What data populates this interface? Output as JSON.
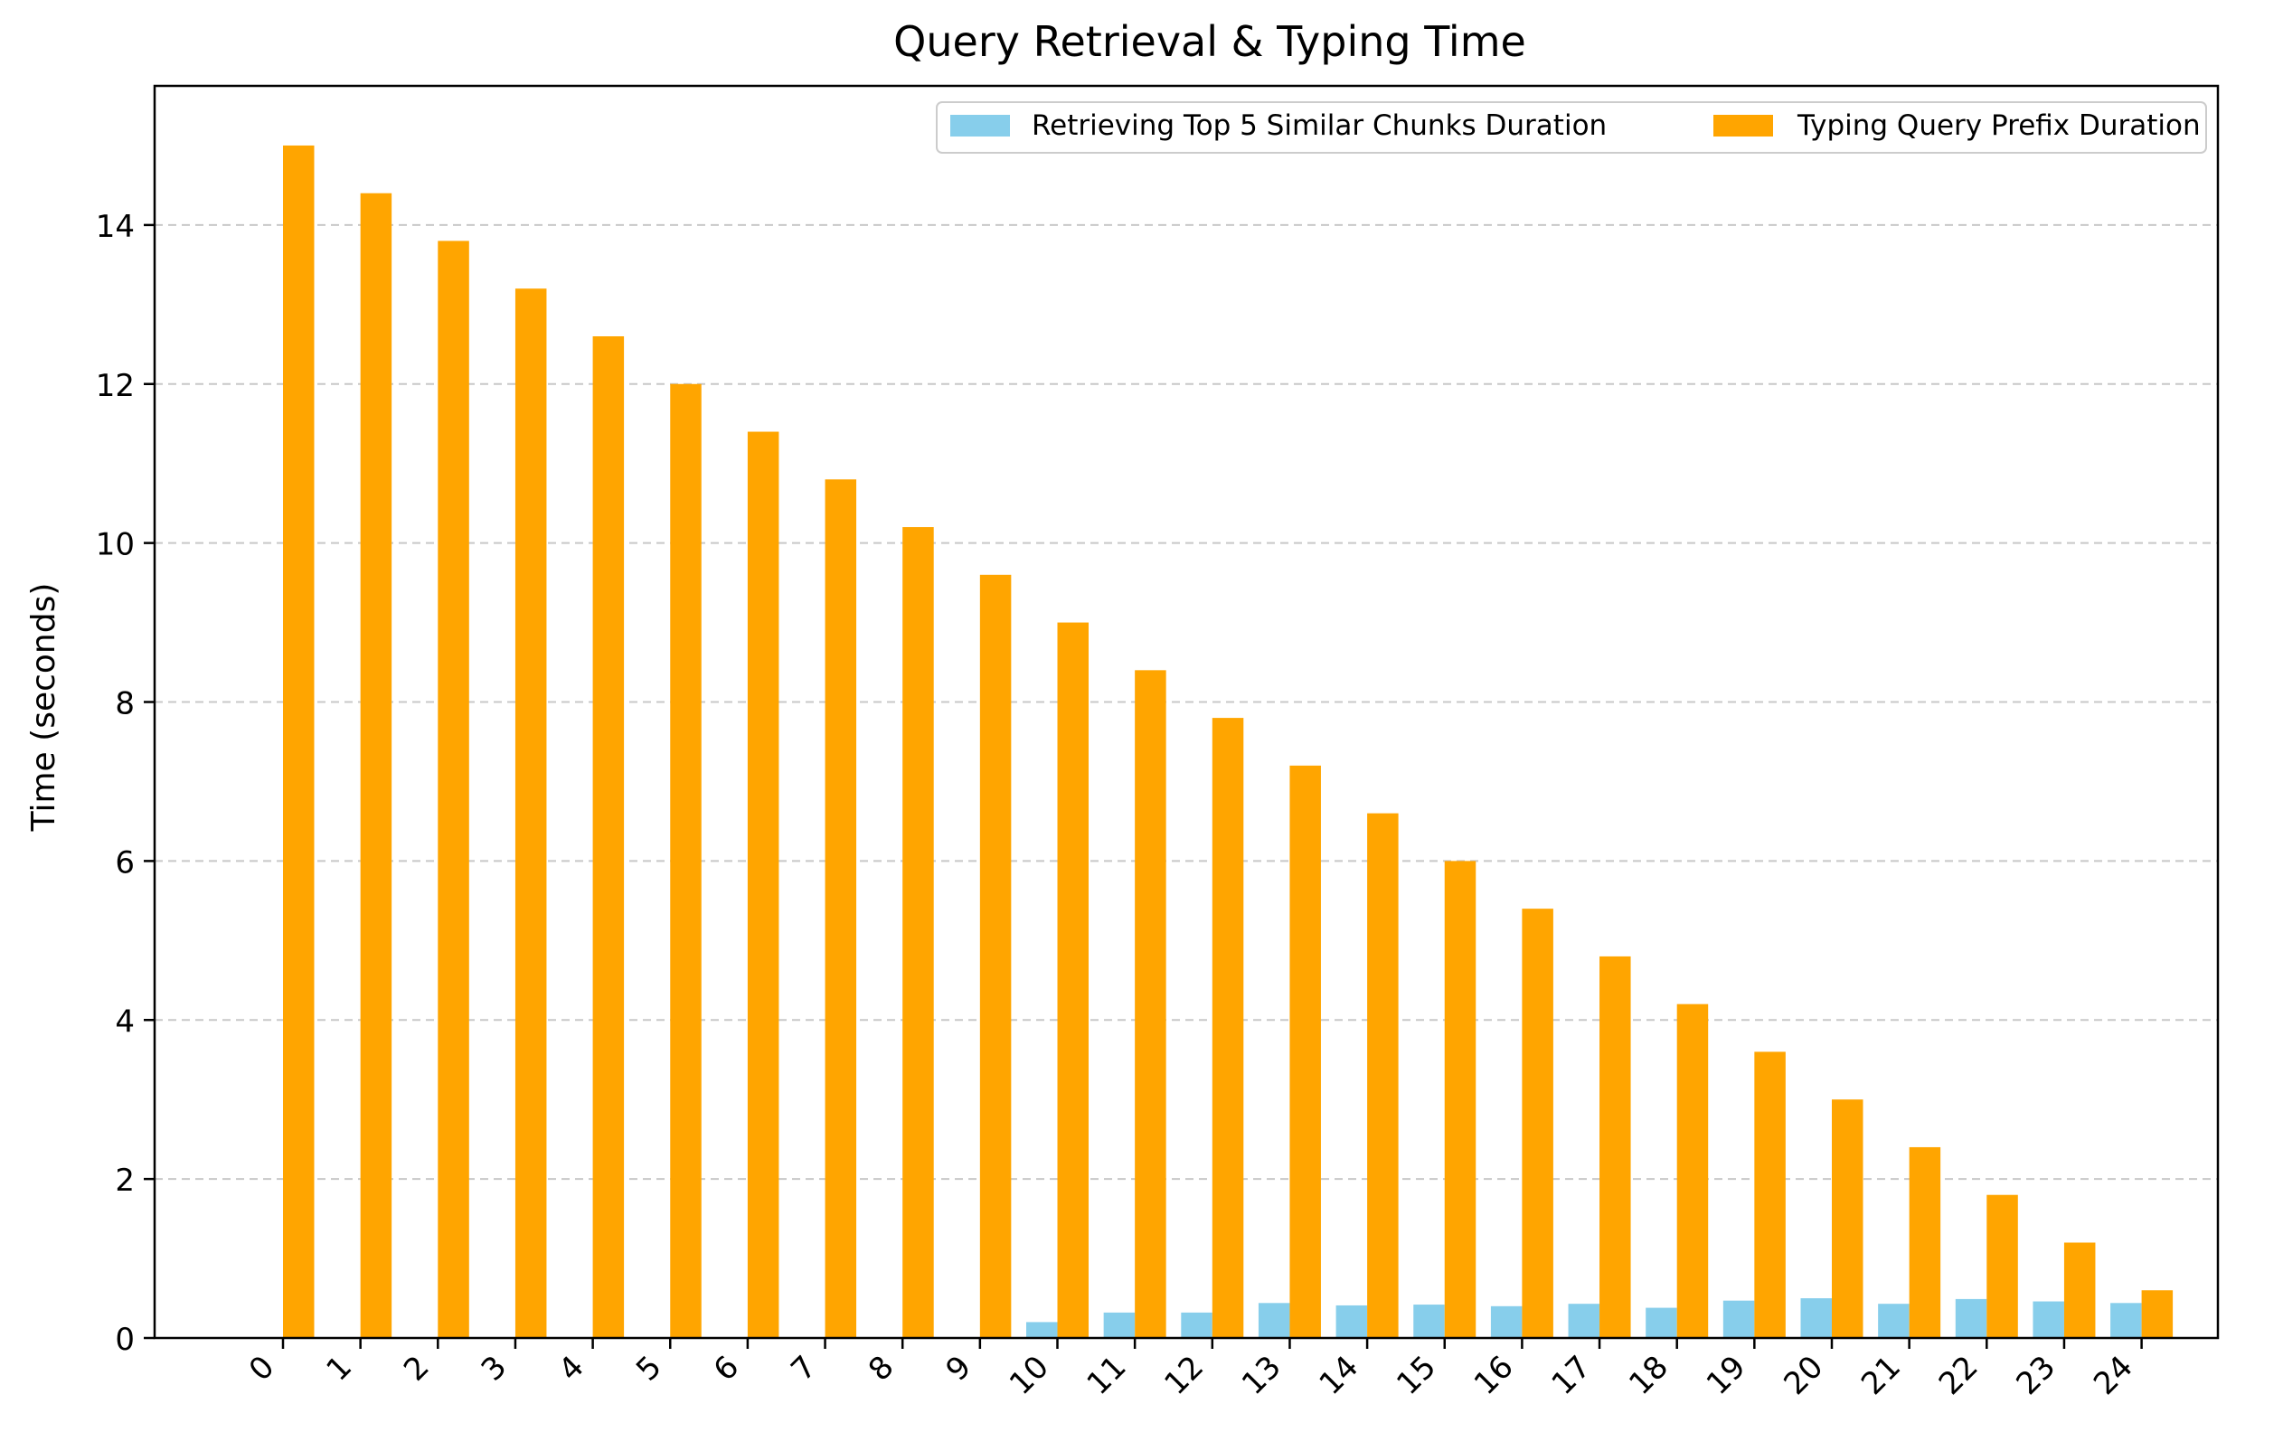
{
  "chart_data": {
    "type": "bar",
    "title": "Query Retrieval & Typing Time",
    "xlabel": "",
    "ylabel": "Time (seconds)",
    "categories": [
      "0",
      "1",
      "2",
      "3",
      "4",
      "5",
      "6",
      "7",
      "8",
      "9",
      "10",
      "11",
      "12",
      "13",
      "14",
      "15",
      "16",
      "17",
      "18",
      "19",
      "20",
      "21",
      "22",
      "23",
      "24"
    ],
    "series": [
      {
        "name": "Retrieving Top 5 Similar Chunks Duration",
        "color": "#87CEEB",
        "values": [
          0,
          0,
          0,
          0,
          0,
          0,
          0,
          0,
          0,
          0,
          0.2,
          0.32,
          0.32,
          0.44,
          0.41,
          0.42,
          0.4,
          0.43,
          0.38,
          0.47,
          0.5,
          0.43,
          0.49,
          0.46,
          0.44
        ]
      },
      {
        "name": "Typing Query Prefix Duration",
        "color": "#FFA500",
        "values": [
          15.0,
          14.4,
          13.8,
          13.2,
          12.6,
          12.0,
          11.4,
          10.8,
          10.2,
          9.6,
          9.0,
          8.4,
          7.8,
          7.2,
          6.6,
          6.0,
          5.4,
          4.8,
          4.2,
          3.6,
          3.0,
          2.4,
          1.8,
          1.2,
          0.6
        ]
      }
    ],
    "ylim": [
      0,
      15.75
    ],
    "yticks": [
      "0",
      "2",
      "4",
      "6",
      "8",
      "10",
      "12",
      "14"
    ],
    "grid": "y-dashed",
    "legend_position": "top-right"
  }
}
